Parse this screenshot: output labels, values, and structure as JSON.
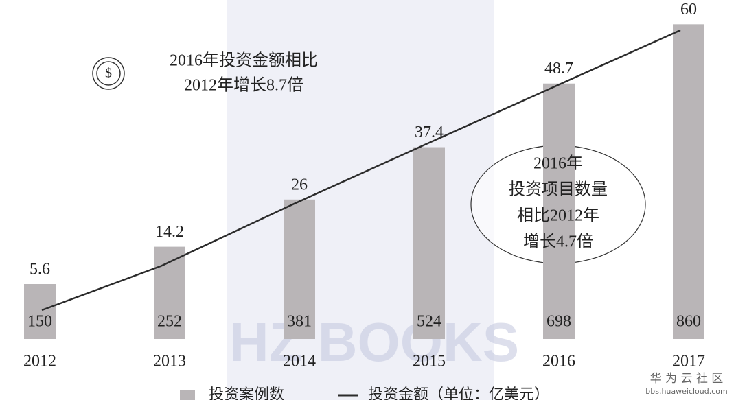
{
  "chart_data": {
    "type": "bar_line",
    "categories": [
      "2012",
      "2013",
      "2014",
      "2015",
      "2016",
      "2017"
    ],
    "series": [
      {
        "name": "投资案例数",
        "type": "bar",
        "color": "#b9b5b7",
        "values": [
          150,
          252,
          381,
          524,
          698,
          860
        ]
      },
      {
        "name": "投资金额（单位：亿美元）",
        "type": "line",
        "axis": "y2",
        "color": "#2b2b2b",
        "values": [
          5.6,
          14.2,
          26,
          37.4,
          48.7,
          60
        ]
      }
    ],
    "ylim": [
      0,
      900
    ],
    "y2lim": [
      0,
      64
    ],
    "annotations": [
      {
        "lines": [
          "2016年投资金额相比",
          "2012年增长8.7倍"
        ]
      },
      {
        "lines": [
          "2016年",
          "投资项目数量",
          "相比2012年",
          "增长4.7倍"
        ]
      }
    ],
    "icon_symbol": "$",
    "watermarks": [
      "HZ BOOKS",
      "华 为 云 社 区",
      "bbs.huaweicloud.com"
    ]
  }
}
